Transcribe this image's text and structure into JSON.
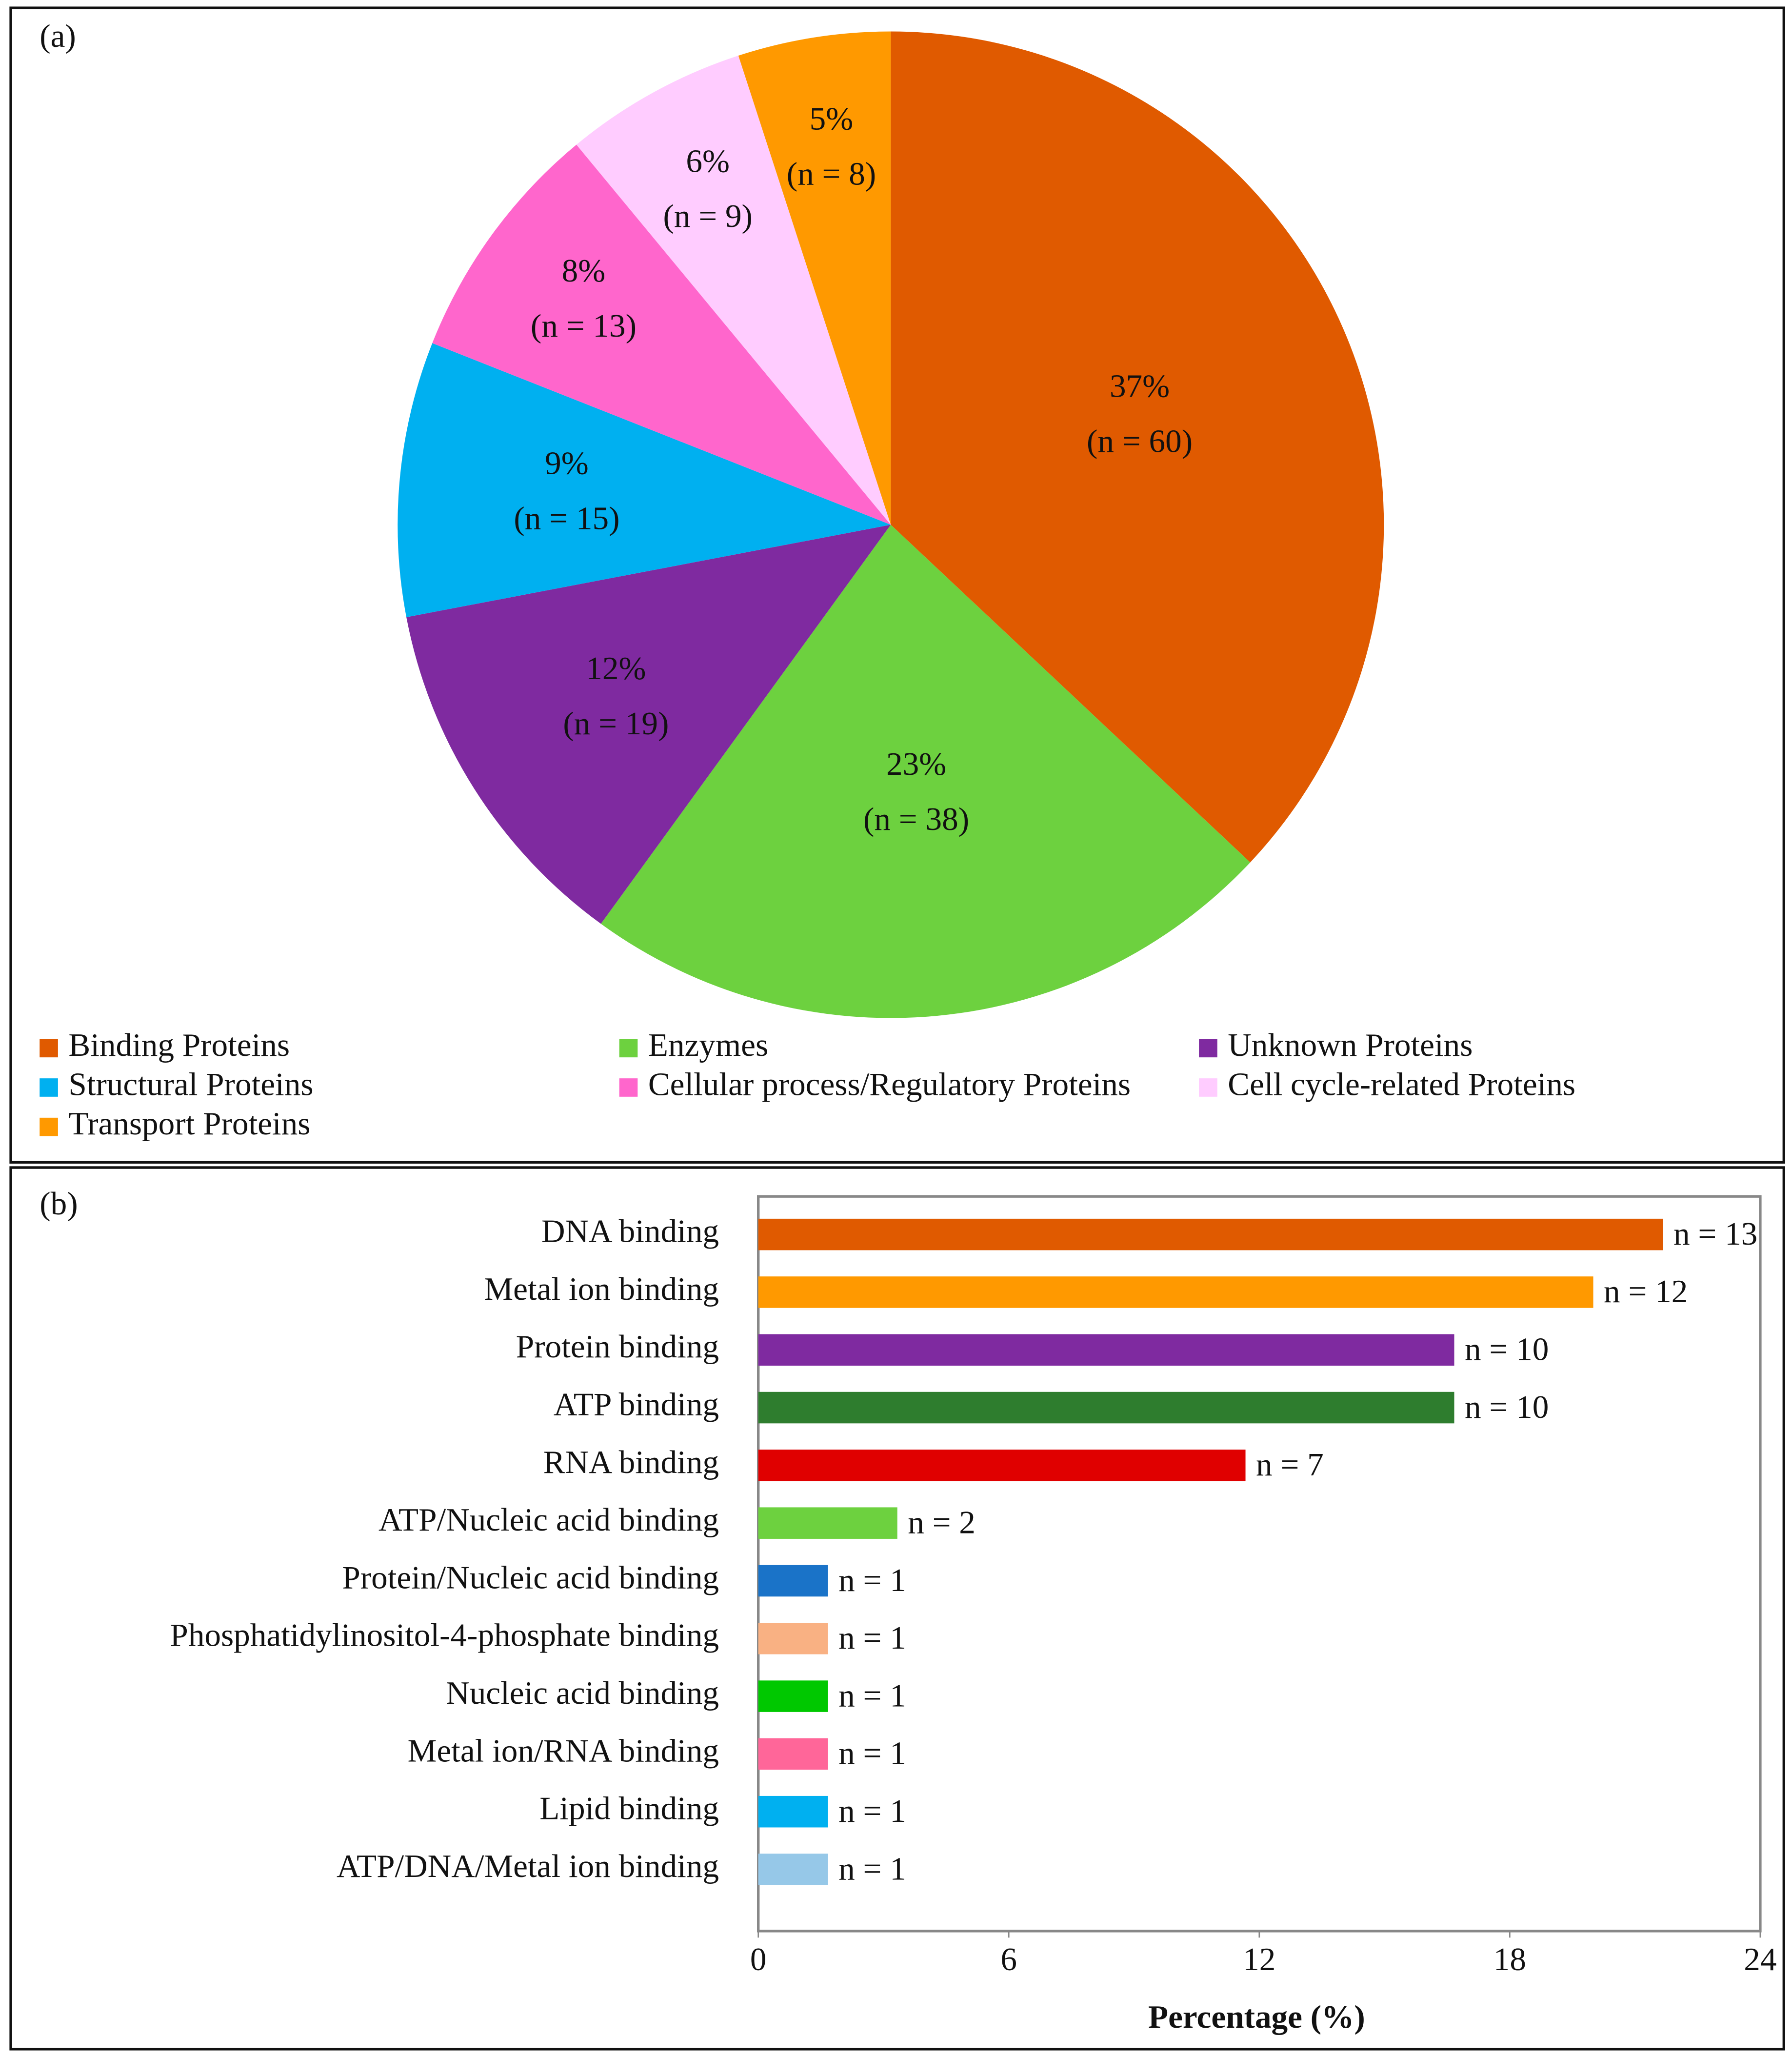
{
  "chart_data": [
    {
      "type": "pie",
      "panel_label": "(a)",
      "categories": [
        "Binding Proteins",
        "Enzymes",
        "Unknown Proteins",
        "Structural Proteins",
        "Cellular process/Regulatory Proteins",
        "Cell cycle-related Proteins",
        "Transport Proteins"
      ],
      "values": [
        37,
        23,
        12,
        9,
        8,
        6,
        5
      ],
      "value_labels": [
        "37%",
        "23%",
        "12%",
        "9%",
        "8%",
        "6%",
        "5%"
      ],
      "counts": [
        60,
        38,
        19,
        15,
        13,
        9,
        8
      ],
      "count_labels": [
        "(n = 60)",
        "(n = 38)",
        "(n = 19)",
        "(n = 15)",
        "(n = 13)",
        "(n = 9)",
        "(n = 8)"
      ],
      "colors": [
        "#e05a00",
        "#6dd13f",
        "#7f2aa0",
        "#00b0f0",
        "#ff66cc",
        "#ffccff",
        "#ff9900"
      ],
      "legend": "bottom"
    },
    {
      "type": "hbar",
      "panel_label": "(b)",
      "categories": [
        "DNA binding",
        "Metal ion binding",
        "Protein binding",
        "ATP binding",
        "RNA binding",
        "ATP/Nucleic acid binding",
        "Protein/Nucleic acid binding",
        "Phosphatidylinositol-4-phosphate binding",
        "Nucleic acid binding",
        "Metal ion/RNA binding",
        "Lipid binding",
        "ATP/DNA/Metal ion binding"
      ],
      "values": [
        21.67,
        20,
        16.67,
        16.67,
        11.67,
        3.33,
        1.67,
        1.67,
        1.67,
        1.67,
        1.67,
        1.67
      ],
      "counts": [
        13,
        12,
        10,
        10,
        7,
        2,
        1,
        1,
        1,
        1,
        1,
        1
      ],
      "count_labels": [
        "n = 13",
        "n = 12",
        "n = 10",
        "n = 10",
        "n = 7",
        "n = 2",
        "n = 1",
        "n = 1",
        "n = 1",
        "n = 1",
        "n = 1",
        "n = 1"
      ],
      "colors": [
        "#e05a00",
        "#ff9900",
        "#7f2aa0",
        "#2e7d2e",
        "#e00000",
        "#6dd13f",
        "#1a73c8",
        "#f9b183",
        "#00c800",
        "#ff6699",
        "#00b0f0",
        "#96c8e8"
      ],
      "xlabel": "Percentage (%)",
      "xlim": [
        0,
        24
      ],
      "xticks": [
        0,
        6,
        12,
        18,
        24
      ]
    }
  ]
}
